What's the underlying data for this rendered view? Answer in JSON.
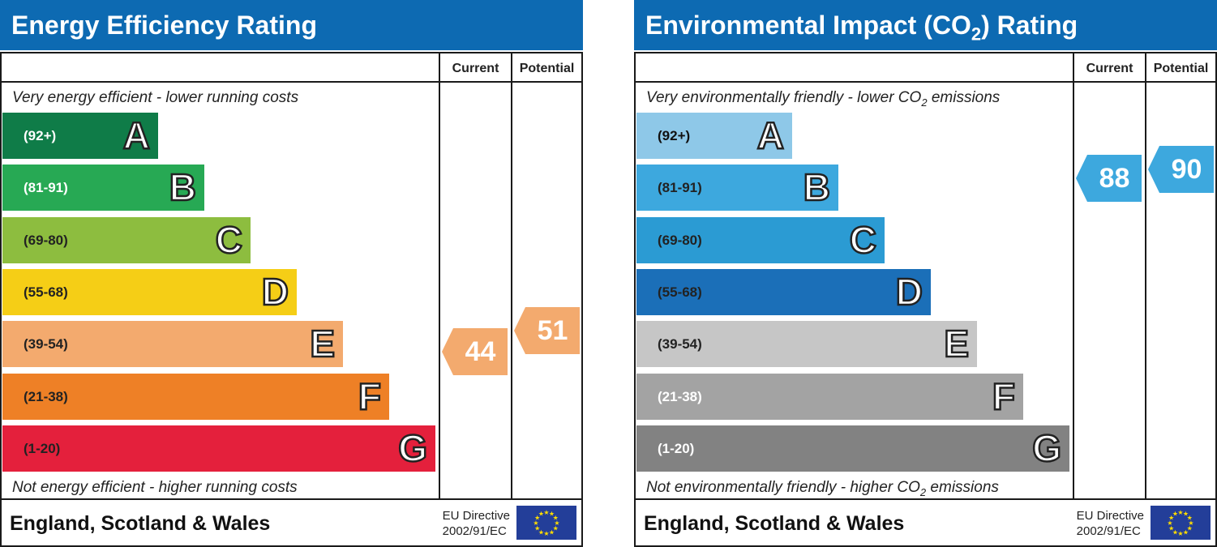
{
  "chart_data": [
    {
      "type": "bar",
      "title": "Energy Efficiency Rating",
      "columns": [
        "Current",
        "Potential"
      ],
      "top_note": "Very energy efficient - lower running costs",
      "bottom_note": "Not energy efficient - higher running costs",
      "footer": "England, Scotland & Wales",
      "directive": [
        "EU Directive",
        "2002/91/EC"
      ],
      "bands": [
        {
          "letter": "A",
          "range": "(92+)",
          "color": "#0f7c48",
          "text_color": "#ffffff"
        },
        {
          "letter": "B",
          "range": "(81-91)",
          "color": "#27a954",
          "text_color": "#ffffff"
        },
        {
          "letter": "C",
          "range": "(69-80)",
          "color": "#8dbd3f",
          "text_color": "#222222"
        },
        {
          "letter": "D",
          "range": "(55-68)",
          "color": "#f5ce16",
          "text_color": "#222222"
        },
        {
          "letter": "E",
          "range": "(39-54)",
          "color": "#f3aa6e",
          "text_color": "#222222"
        },
        {
          "letter": "F",
          "range": "(21-38)",
          "color": "#ee8026",
          "text_color": "#222222"
        },
        {
          "letter": "G",
          "range": "(1-20)",
          "color": "#e4203c",
          "text_color": "#222222"
        }
      ],
      "current": 44,
      "potential": 51,
      "current_color": "#f3aa6e",
      "potential_color": "#f3aa6e"
    },
    {
      "type": "bar",
      "title_main": "Environmental Impact (CO",
      "title_sub": "2",
      "title_end": ") Rating",
      "columns": [
        "Current",
        "Potential"
      ],
      "top_note": "Very environmentally friendly - lower CO",
      "top_note_sub": "2",
      "top_note_end": " emissions",
      "bottom_note": "Not environmentally friendly - higher CO",
      "bottom_note_sub": "2",
      "bottom_note_end": " emissions",
      "footer": "England, Scotland & Wales",
      "directive": [
        "EU Directive",
        "2002/91/EC"
      ],
      "bands": [
        {
          "letter": "A",
          "range": "(92+)",
          "color": "#8ec8e8",
          "text_color": "#111111"
        },
        {
          "letter": "B",
          "range": "(81-91)",
          "color": "#3da8de",
          "text_color": "#222222"
        },
        {
          "letter": "C",
          "range": "(69-80)",
          "color": "#2b9bd3",
          "text_color": "#222222"
        },
        {
          "letter": "D",
          "range": "(55-68)",
          "color": "#1b6fb8",
          "text_color": "#222222"
        },
        {
          "letter": "E",
          "range": "(39-54)",
          "color": "#c6c6c6",
          "text_color": "#222222"
        },
        {
          "letter": "F",
          "range": "(21-38)",
          "color": "#a3a3a3",
          "text_color": "#ffffff"
        },
        {
          "letter": "G",
          "range": "(1-20)",
          "color": "#828282",
          "text_color": "#ffffff"
        }
      ],
      "current": 88,
      "potential": 90,
      "current_color": "#3da8de",
      "potential_color": "#3da8de"
    }
  ]
}
